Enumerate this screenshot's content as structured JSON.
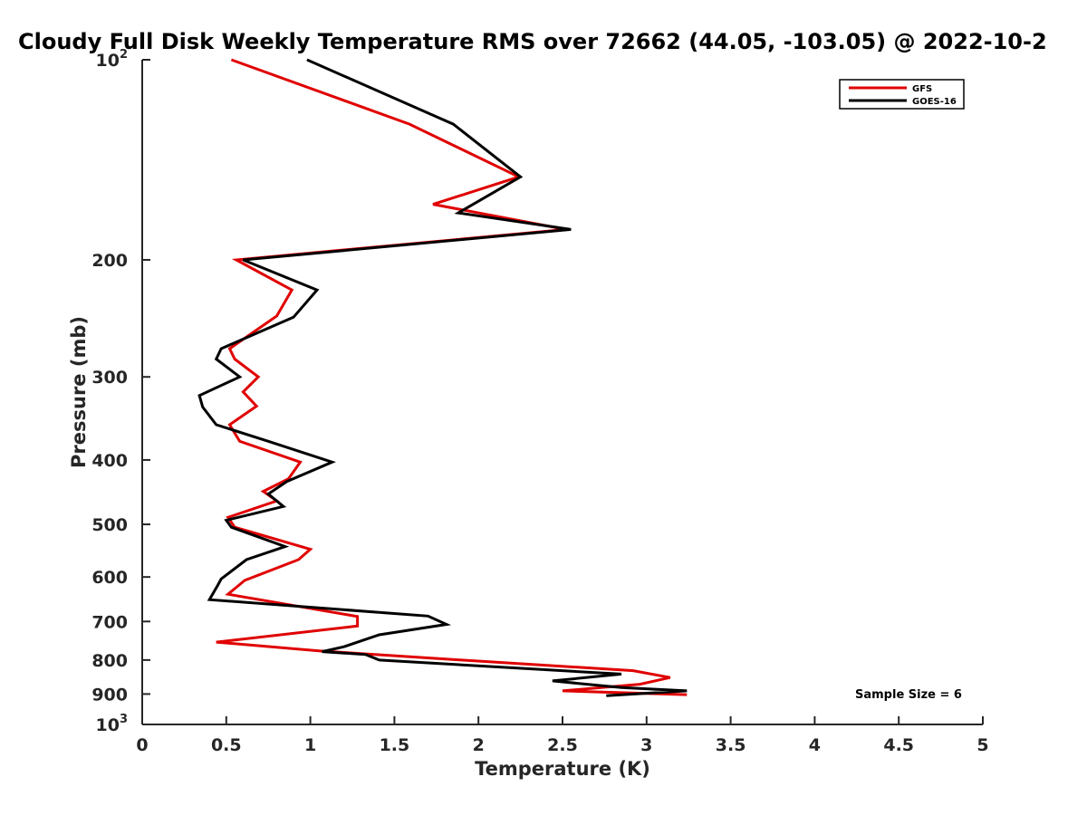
{
  "chart_data": {
    "type": "line",
    "title": "Cloudy Full Disk Weekly Temperature RMS over 72662 (44.05, -103.05) @ 2022-10-2",
    "xlabel": "Temperature (K)",
    "ylabel": "Pressure (mb)",
    "xlim": [
      0,
      5
    ],
    "ylim": [
      100,
      1000
    ],
    "y_scale": "log",
    "y_reversed": true,
    "grid": false,
    "legend_position": "top-right",
    "x_ticks": [
      "0",
      "0.5",
      "1",
      "1.5",
      "2",
      "2.5",
      "3",
      "3.5",
      "4",
      "4.5",
      "5"
    ],
    "y_ticks": [
      {
        "value": 100,
        "label": "10",
        "exp": "2"
      },
      {
        "value": 200,
        "label": "200"
      },
      {
        "value": 300,
        "label": "300"
      },
      {
        "value": 400,
        "label": "400"
      },
      {
        "value": 500,
        "label": "500"
      },
      {
        "value": 600,
        "label": "600"
      },
      {
        "value": 700,
        "label": "700"
      },
      {
        "value": 800,
        "label": "800"
      },
      {
        "value": 900,
        "label": "900"
      },
      {
        "value": 1000,
        "label": "10",
        "exp": "3"
      }
    ],
    "annotation": "Sample Size = 6",
    "series": [
      {
        "name": "GFS",
        "color": "#e00000",
        "x": [
          0.53,
          1.59,
          2.24,
          1.73,
          2.52,
          0.56,
          0.89,
          0.8,
          0.52,
          0.55,
          0.69,
          0.6,
          0.68,
          0.52,
          0.58,
          0.94,
          0.87,
          0.72,
          0.8,
          0.51,
          0.55,
          1.0,
          0.93,
          0.61,
          0.51,
          1.28,
          1.28,
          0.44,
          1.05,
          1.9,
          2.92,
          3.14,
          2.96,
          2.5,
          3.24
        ],
        "y": [
          100,
          125,
          150,
          165,
          180,
          200,
          222,
          243,
          272,
          282,
          300,
          316,
          332,
          354,
          375,
          403,
          427,
          446,
          461,
          488,
          505,
          545,
          565,
          607,
          637,
          688,
          711,
          752,
          775,
          800,
          830,
          850,
          870,
          890,
          902
        ]
      },
      {
        "name": "GOES-16",
        "color": "#000000",
        "x": [
          0.98,
          1.85,
          2.25,
          1.88,
          2.55,
          0.6,
          1.04,
          0.9,
          0.47,
          0.44,
          0.58,
          0.34,
          0.36,
          0.44,
          0.75,
          1.13,
          0.86,
          0.75,
          0.84,
          0.5,
          0.53,
          0.85,
          0.62,
          0.47,
          0.45,
          0.4,
          1.7,
          1.81,
          1.41,
          1.2,
          1.07,
          1.33,
          1.41,
          2.85,
          2.44,
          2.85,
          3.24,
          2.76
        ],
        "y": [
          100,
          125,
          150,
          170,
          180,
          200,
          222,
          244,
          272,
          282,
          300,
          320,
          333,
          354,
          375,
          403,
          431,
          450,
          470,
          493,
          505,
          540,
          565,
          604,
          617,
          649,
          687,
          707,
          733,
          764,
          777,
          785,
          800,
          840,
          860,
          880,
          890,
          905
        ]
      }
    ]
  }
}
